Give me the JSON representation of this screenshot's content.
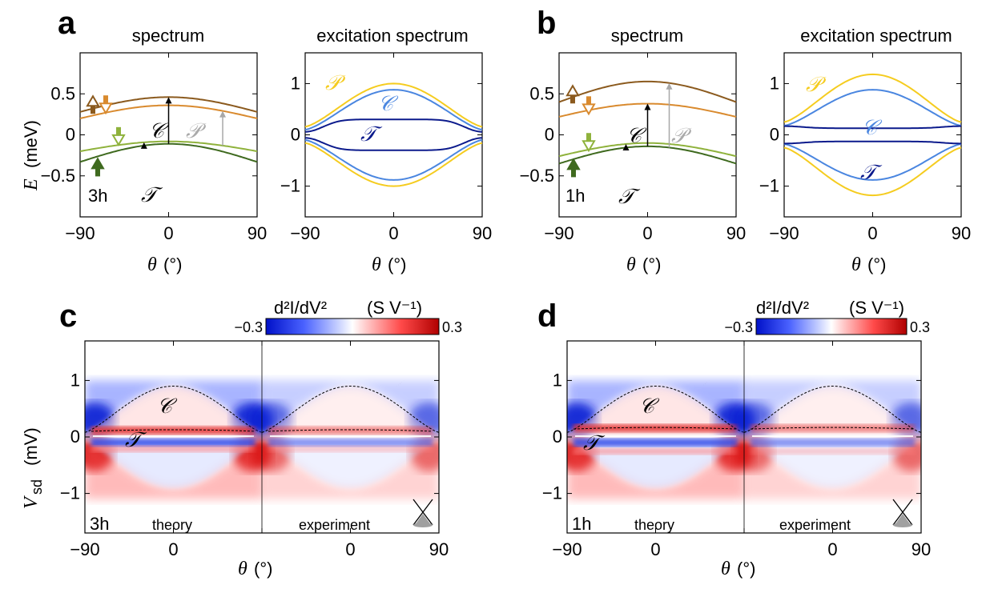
{
  "panels": {
    "a": {
      "label": "a",
      "left_title": "spectrum",
      "right_title": "excitation spectrum",
      "tag": "3h"
    },
    "b": {
      "label": "b",
      "left_title": "spectrum",
      "right_title": "excitation spectrum",
      "tag": "1h"
    },
    "c": {
      "label": "c",
      "tag": "3h",
      "left_caption": "theory",
      "right_caption": "experiment"
    },
    "d": {
      "label": "d",
      "tag": "1h",
      "left_caption": "theory",
      "right_caption": "experiment"
    }
  },
  "axes": {
    "energy_ylabel": "E",
    "energy_yunit": "(meV)",
    "theta_xlabel": "θ",
    "theta_xunit": "(°)",
    "vsd_ylabel": "V",
    "vsd_sub": "sd",
    "vsd_unit": "(mV)",
    "colorbar_label": "d²I/dV²",
    "colorbar_unit": "(S V⁻¹)",
    "colorbar_min_label": "−0.3",
    "colorbar_max_label": "0.3"
  },
  "band_labels": {
    "C": "𝒞",
    "T": "𝒯",
    "P": "𝒫"
  },
  "colors": {
    "band_dark_brown": "#8b5a1e",
    "band_orange": "#d98a2e",
    "band_light_green": "#8fb23c",
    "band_dark_green": "#3f6a1f",
    "exc_P": "#f5cc1f",
    "exc_C": "#4a86e0",
    "exc_T": "#0b1a8c",
    "arrow_gray": "#a8a8a8",
    "cmap_neg": "#0016d0",
    "cmap_pos": "#c00000"
  },
  "chart_data": [
    {
      "id": "a-spectrum",
      "type": "line",
      "title": "spectrum",
      "xlabel": "θ (°)",
      "ylabel": "E (meV)",
      "xlim": [
        -90,
        90
      ],
      "ylim": [
        -1.0,
        1.0
      ],
      "xticks": [
        -90,
        0,
        90
      ],
      "yticks": [
        -0.5,
        0,
        0.5
      ],
      "series": [
        {
          "color": "#8b5a1e",
          "center": 0.28,
          "amp": 0.18,
          "zero_at_90": false
        },
        {
          "color": "#d98a2e",
          "center": 0.2,
          "amp": 0.16,
          "zero_at_90": true
        },
        {
          "color": "#8fb23c",
          "center": -0.2,
          "amp": 0.12,
          "zero_at_90": true
        },
        {
          "color": "#3f6a1f",
          "center": -0.33,
          "amp": 0.22,
          "zero_at_90": false
        }
      ]
    },
    {
      "id": "a-excitation",
      "type": "line",
      "title": "excitation spectrum",
      "xlabel": "θ (°)",
      "xlim": [
        -90,
        90
      ],
      "ylim": [
        -1.6,
        1.6
      ],
      "xticks": [
        -90,
        0,
        90
      ],
      "yticks": [
        -1,
        0,
        1
      ],
      "series": [
        {
          "name": "𝒫",
          "color": "#f5cc1f",
          "peak": 1.0,
          "edge": 0.16
        },
        {
          "name": "𝒞",
          "color": "#4a86e0",
          "peak": 0.88,
          "edge": 0.1
        },
        {
          "name": "𝒯",
          "color": "#0b1a8c",
          "peak": 0.3,
          "edge": 0.06,
          "flat": true
        }
      ]
    },
    {
      "id": "b-spectrum",
      "type": "line",
      "title": "spectrum",
      "xlabel": "θ (°)",
      "ylabel": "E (meV)",
      "xlim": [
        -90,
        90
      ],
      "ylim": [
        -1.0,
        1.0
      ],
      "xticks": [
        -90,
        0,
        90
      ],
      "yticks": [
        -0.5,
        0,
        0.5
      ],
      "series": [
        {
          "color": "#8b5a1e",
          "center": 0.4,
          "amp": 0.25,
          "zero_at_90": false
        },
        {
          "color": "#d98a2e",
          "center": 0.22,
          "amp": 0.16,
          "zero_at_90": true
        },
        {
          "color": "#8fb23c",
          "center": -0.26,
          "amp": 0.16,
          "zero_at_90": true
        },
        {
          "color": "#3f6a1f",
          "center": -0.35,
          "amp": 0.21,
          "zero_at_90": false
        }
      ]
    },
    {
      "id": "b-excitation",
      "type": "line",
      "title": "excitation spectrum",
      "xlabel": "θ (°)",
      "xlim": [
        -90,
        90
      ],
      "ylim": [
        -1.6,
        1.6
      ],
      "xticks": [
        -90,
        0,
        90
      ],
      "yticks": [
        -1,
        0,
        1
      ],
      "series": [
        {
          "name": "𝒫",
          "color": "#f5cc1f",
          "peak": 1.18,
          "edge": 0.25
        },
        {
          "name": "𝒞",
          "color": "#4a86e0",
          "peak": 0.88,
          "edge": 0.18
        },
        {
          "name": "𝒯",
          "color": "#0b1a8c",
          "peak": 0.13,
          "edge": 0.17,
          "flat": true
        }
      ]
    },
    {
      "id": "c-map",
      "type": "heatmap",
      "xlabel": "θ (°)",
      "ylabel": "Vsd (mV)",
      "xlim": [
        -90,
        90
      ],
      "ylim": [
        -1.7,
        1.7
      ],
      "xticks": [
        -90,
        0,
        90
      ],
      "yticks": [
        -1,
        0,
        1
      ],
      "clim": [
        -0.3,
        0.3
      ],
      "C_peak": 0.9,
      "C_edge": 0.08,
      "T_level": 0.1
    },
    {
      "id": "d-map",
      "type": "heatmap",
      "xlabel": "θ (°)",
      "ylabel": "Vsd (mV)",
      "xlim": [
        -90,
        90
      ],
      "ylim": [
        -1.7,
        1.7
      ],
      "xticks": [
        -90,
        0,
        90
      ],
      "yticks": [
        -1,
        0,
        1
      ],
      "clim": [
        -0.3,
        0.3
      ],
      "C_peak": 0.9,
      "C_edge": 0.08,
      "T_level": 0.14
    }
  ]
}
